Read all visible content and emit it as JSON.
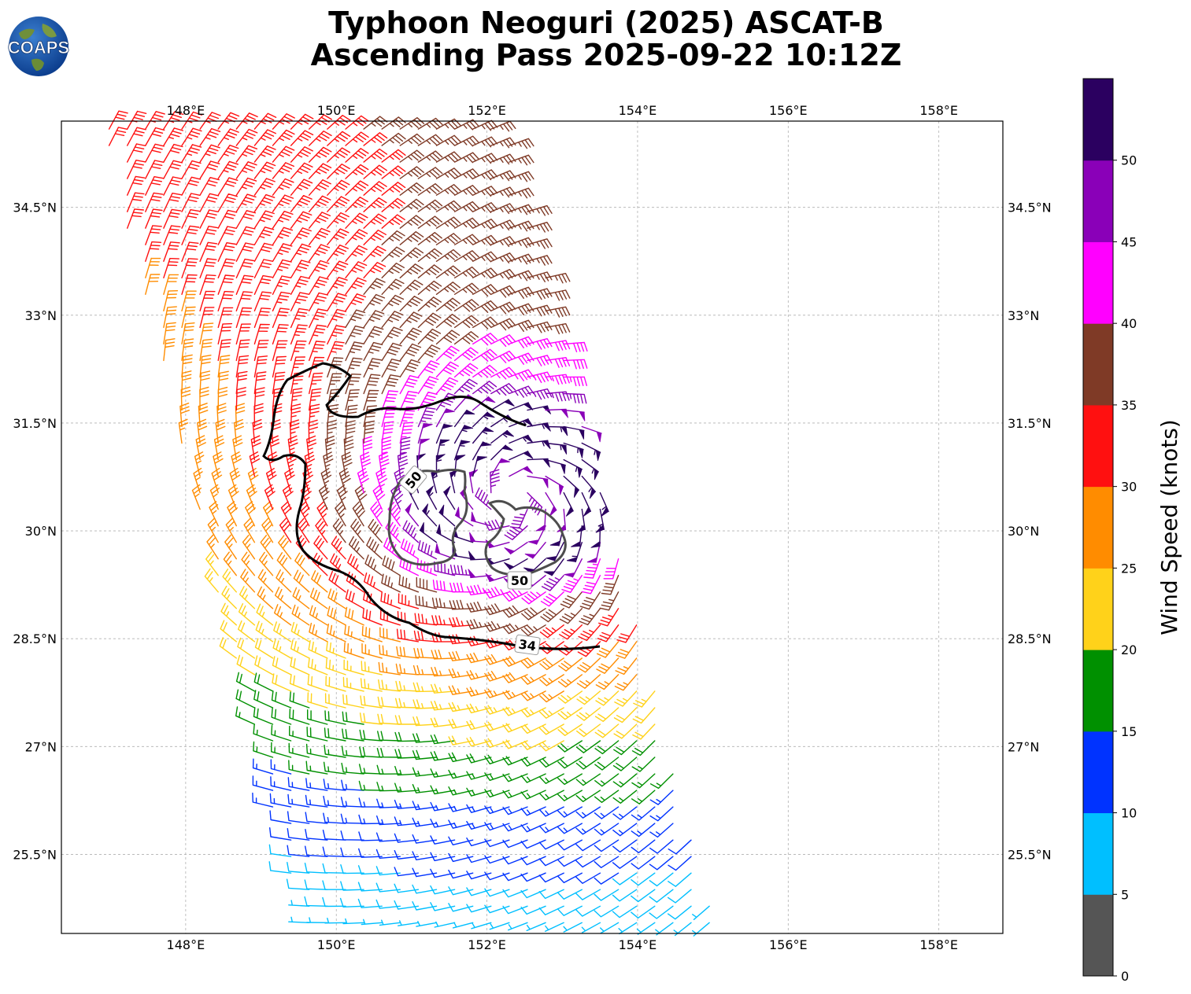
{
  "header": {
    "title_line1": "Typhoon Neoguri (2025) ASCAT-B",
    "title_line2": "Ascending Pass 2025-09-22 10:12Z",
    "logo_text": "COAPS"
  },
  "map": {
    "lon_range": [
      146.35,
      158.85
    ],
    "lat_range": [
      24.4,
      35.7
    ],
    "lon_ticks": [
      "148°E",
      "150°E",
      "152°E",
      "154°E",
      "156°E",
      "158°E"
    ],
    "lat_ticks": [
      "34.5°N",
      "33°N",
      "31.5°N",
      "30°N",
      "28.5°N",
      "27°N",
      "25.5°N"
    ],
    "lon_tick_values": [
      148,
      150,
      152,
      154,
      156,
      158
    ],
    "lat_tick_values": [
      34.5,
      33,
      31.5,
      30,
      28.5,
      27,
      25.5
    ],
    "storm_center": {
      "lon": 152.35,
      "lat": 30.45
    },
    "contours": [
      {
        "label": "34",
        "color": "#000000"
      },
      {
        "label": "50",
        "color": "#4d4d4d"
      },
      {
        "label": "50",
        "color": "#4d4d4d"
      }
    ]
  },
  "colorbar": {
    "label": "Wind Speed (knots)",
    "tick_labels": [
      "0",
      "5",
      "10",
      "15",
      "20",
      "25",
      "30",
      "35",
      "40",
      "45",
      "50"
    ],
    "colors": [
      "#555555",
      "#00bfff",
      "#0033ff",
      "#009000",
      "#ffd21a",
      "#ff8c00",
      "#ff1010",
      "#7f3a26",
      "#ff00ff",
      "#8a00b8",
      "#2b0060"
    ]
  }
}
